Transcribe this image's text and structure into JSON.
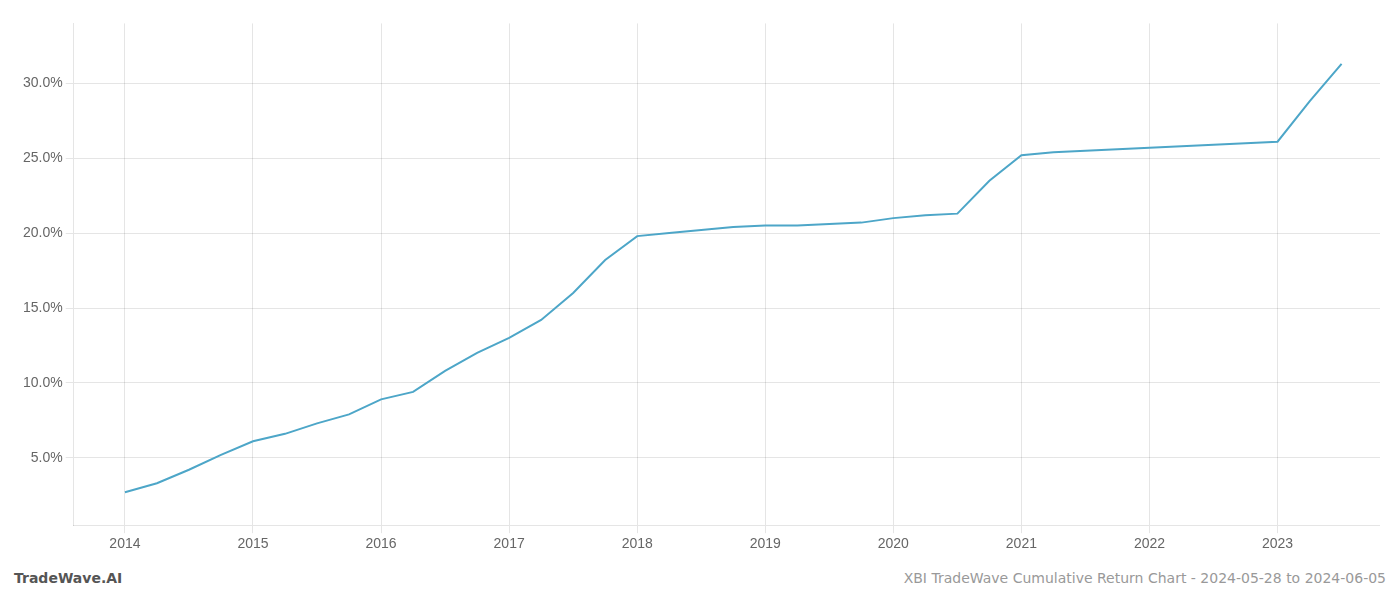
{
  "chart_data": {
    "type": "line",
    "x": [
      2014.0,
      2014.25,
      2014.5,
      2014.75,
      2015.0,
      2015.25,
      2015.5,
      2015.75,
      2016.0,
      2016.25,
      2016.5,
      2016.75,
      2017.0,
      2017.25,
      2017.5,
      2017.75,
      2018.0,
      2018.25,
      2018.5,
      2018.75,
      2019.0,
      2019.25,
      2019.5,
      2019.75,
      2020.0,
      2020.25,
      2020.5,
      2020.75,
      2021.0,
      2021.25,
      2021.5,
      2021.75,
      2022.0,
      2022.25,
      2022.5,
      2022.75,
      2023.0,
      2023.25,
      2023.5
    ],
    "values": [
      2.7,
      3.3,
      4.2,
      5.2,
      6.1,
      6.6,
      7.3,
      7.9,
      8.9,
      9.4,
      10.8,
      12.0,
      13.0,
      14.2,
      16.0,
      18.2,
      19.8,
      20.0,
      20.2,
      20.4,
      20.5,
      20.5,
      20.6,
      20.7,
      21.0,
      21.2,
      21.3,
      23.5,
      25.2,
      25.4,
      25.5,
      25.6,
      25.7,
      25.8,
      25.9,
      26.0,
      26.1,
      28.8,
      31.3
    ],
    "color": "#4da6c8",
    "xlim": [
      2013.6,
      2023.8
    ],
    "ylim": [
      0.5,
      34.0
    ],
    "xticks": [
      2014,
      2015,
      2016,
      2017,
      2018,
      2019,
      2020,
      2021,
      2022,
      2023
    ],
    "yticks": [
      {
        "value": 5.0,
        "label": "5.0%"
      },
      {
        "value": 10.0,
        "label": "10.0%"
      },
      {
        "value": 15.0,
        "label": "15.0%"
      },
      {
        "value": 20.0,
        "label": "20.0%"
      },
      {
        "value": 25.0,
        "label": "25.0%"
      },
      {
        "value": 30.0,
        "label": "30.0%"
      }
    ],
    "grid": true,
    "annotations": [
      "TradeWave.AI",
      "XBI TradeWave Cumulative Return Chart - 2024-05-28 to 2024-06-05"
    ]
  }
}
